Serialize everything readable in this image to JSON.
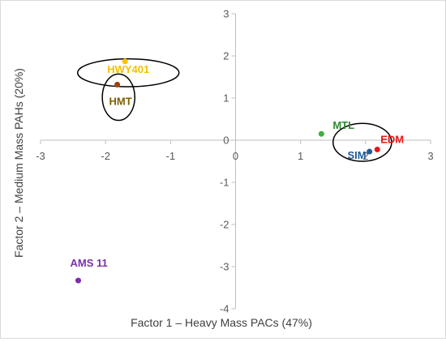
{
  "chart_data": {
    "type": "scatter",
    "xlabel": "Factor 1 – Heavy Mass PACs (47%)",
    "ylabel": "Factor 2 – Medium Mass PAHs (20%)",
    "xlim": [
      -3,
      3
    ],
    "ylim": [
      -4,
      3
    ],
    "x_ticks": [
      "-3",
      "-2",
      "-1",
      "0",
      "1",
      "2",
      "3"
    ],
    "y_ticks": [
      "-4",
      "-3",
      "-2",
      "-1",
      "0",
      "1",
      "2",
      "3"
    ],
    "grid": false,
    "points": [
      {
        "label": "HWY401",
        "x": -1.7,
        "y": 1.87,
        "color": "#FFC000"
      },
      {
        "label": "HMT",
        "x": -1.82,
        "y": 1.32,
        "color": "#A0400C"
      },
      {
        "label": "MTL",
        "x": 1.32,
        "y": 0.15,
        "color": "#3FAE3F"
      },
      {
        "label": "EDM",
        "x": 2.18,
        "y": -0.22,
        "color": "#E81818"
      },
      {
        "label": "SIM",
        "x": 2.06,
        "y": -0.27,
        "color": "#1F5C99"
      },
      {
        "label": "AMS 11",
        "x": -2.42,
        "y": -3.33,
        "color": "#7B2FA6"
      }
    ],
    "point_label_colors": {
      "HWY401": "#F2C200",
      "HMT": "#7F6000",
      "MTL": "#2E8B2E",
      "EDM": "#E81818",
      "SIM": "#1F5C99",
      "AMS 11": "#7B2FA6"
    },
    "cluster_ellipses": [
      {
        "members": [
          "HWY401",
          "HMT"
        ],
        "center": [
          -1.65,
          1.6
        ],
        "radius": [
          0.78,
          0.33
        ]
      },
      {
        "members": [
          "HMT"
        ],
        "center": [
          -1.8,
          1.02
        ],
        "radius": [
          0.25,
          0.55
        ]
      },
      {
        "members": [
          "MTL",
          "EDM",
          "SIM"
        ],
        "center": [
          1.95,
          -0.05
        ],
        "radius": [
          0.45,
          0.45
        ]
      }
    ]
  }
}
